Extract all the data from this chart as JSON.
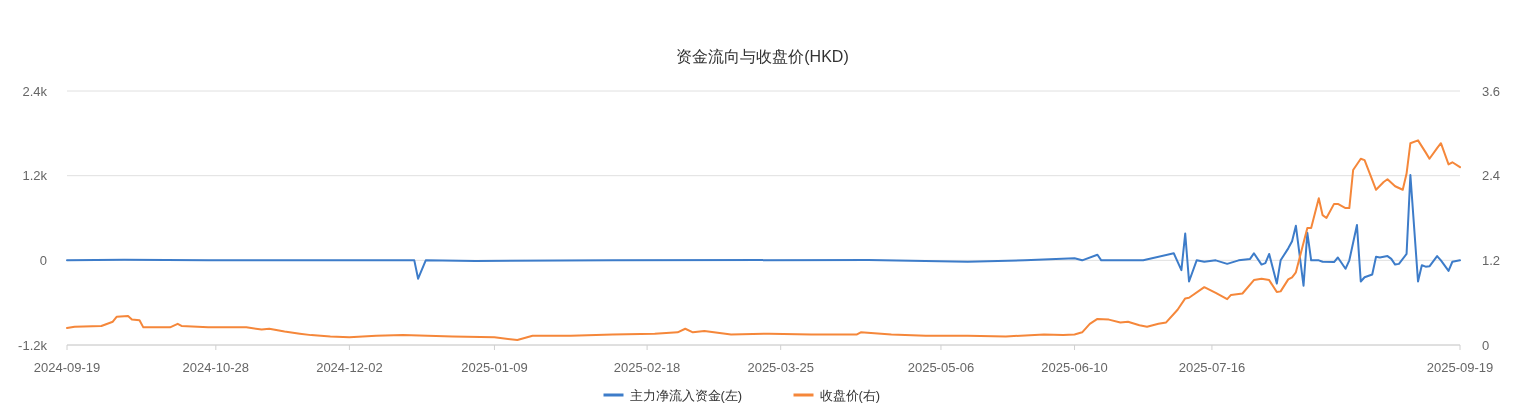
{
  "chart_data": {
    "type": "line",
    "title": "资金流向与收盘价(HKD)",
    "xlim": [
      "2024-09-19",
      "2025-09-19"
    ],
    "xticks": [
      {
        "value": "2024-09-19",
        "label": "2024-09-19"
      },
      {
        "value": "2024-10-28",
        "label": "2024-10-28"
      },
      {
        "value": "2024-12-02",
        "label": "2024-12-02"
      },
      {
        "value": "2025-01-09",
        "label": "2025-01-09"
      },
      {
        "value": "2025-02-18",
        "label": "2025-02-18"
      },
      {
        "value": "2025-03-25",
        "label": "2025-03-25"
      },
      {
        "value": "2025-05-06",
        "label": "2025-05-06"
      },
      {
        "value": "2025-06-10",
        "label": "2025-06-10"
      },
      {
        "value": "2025-07-16",
        "label": "2025-07-16"
      },
      {
        "value": "2025-09-19",
        "label": "2025-09-19"
      }
    ],
    "ylim": [
      -1200,
      2400
    ],
    "yticks": [
      {
        "value": -1200,
        "label": "-1.2k"
      },
      0,
      {
        "value": 1200,
        "label": "1.2k"
      },
      {
        "value": 2400,
        "label": "2.4k"
      }
    ],
    "y2lim": [
      0,
      3.6
    ],
    "y2ticks": [
      0,
      1.2,
      2.4,
      3.6
    ],
    "grid": "y",
    "legend": "bottom",
    "marker": "none",
    "line_style": "solid",
    "series": [
      {
        "name": "主力净流入资金(左)",
        "color": "#3d7cc9",
        "x": [
          "2024-09-19",
          "2024-10-04",
          "2024-10-26",
          "2024-12-19",
          "2024-12-20",
          "2024-12-22",
          "2025-01-04",
          "2025-02-09",
          "2025-04-17",
          "2025-05-13",
          "2025-05-28",
          "2025-06-10",
          "2025-06-12",
          "2025-06-16",
          "2025-06-17",
          "2025-06-28",
          "2025-07-06",
          "2025-07-08",
          "2025-07-09",
          "2025-07-10",
          "2025-07-12",
          "2025-07-14",
          "2025-07-17",
          "2025-07-20",
          "2025-07-23",
          "2025-07-26",
          "2025-07-27",
          "2025-07-29",
          "2025-07-30",
          "2025-07-31",
          "2025-08-02",
          "2025-08-03",
          "2025-08-05",
          "2025-08-06",
          "2025-08-07",
          "2025-08-09",
          "2025-08-10",
          "2025-08-11",
          "2025-08-13",
          "2025-08-14",
          "2025-08-17",
          "2025-08-18",
          "2025-08-20",
          "2025-08-21",
          "2025-08-23",
          "2025-08-24",
          "2025-08-25",
          "2025-08-27",
          "2025-08-28",
          "2025-08-29",
          "2025-08-31",
          "2025-09-01",
          "2025-09-02",
          "2025-09-03",
          "2025-09-05",
          "2025-09-06",
          "2025-09-08",
          "2025-09-09",
          "2025-09-10",
          "2025-09-11",
          "2025-09-13",
          "2025-09-14",
          "2025-09-16",
          "2025-09-17",
          "2025-09-19"
        ],
        "values": [
          0,
          10,
          0,
          0,
          -260,
          0,
          -10,
          0,
          5,
          -20,
          0,
          30,
          0,
          80,
          0,
          0,
          100,
          -140,
          380,
          -300,
          0,
          -20,
          0,
          -50,
          0,
          20,
          100,
          -60,
          -40,
          90,
          -330,
          0,
          170,
          270,
          490,
          -360,
          390,
          0,
          0,
          -20,
          -25,
          40,
          -120,
          0,
          500,
          -300,
          -240,
          -200,
          50,
          40,
          60,
          20,
          -60,
          -50,
          90,
          1210,
          -300,
          -70,
          -90,
          -85,
          60,
          0,
          -150,
          -20,
          0
        ]
      },
      {
        "name": "收盘价(右)",
        "color": "#f5873a",
        "axis": "y2",
        "x": [
          "2024-09-19",
          "2024-09-21",
          "2024-09-28",
          "2024-10-01",
          "2024-10-02",
          "2024-10-05",
          "2024-10-06",
          "2024-10-08",
          "2024-10-09",
          "2024-10-16",
          "2024-10-18",
          "2024-10-19",
          "2024-10-26",
          "2024-11-05",
          "2024-11-09",
          "2024-11-11",
          "2024-11-15",
          "2024-11-19",
          "2024-11-22",
          "2024-11-27",
          "2024-12-02",
          "2024-12-09",
          "2024-12-16",
          "2024-12-29",
          "2025-01-09",
          "2025-01-15",
          "2025-01-19",
          "2025-01-29",
          "2025-02-09",
          "2025-02-20",
          "2025-02-26",
          "2025-02-28",
          "2025-03-02",
          "2025-03-05",
          "2025-03-12",
          "2025-03-22",
          "2025-04-02",
          "2025-04-14",
          "2025-04-15",
          "2025-04-23",
          "2025-05-02",
          "2025-05-13",
          "2025-05-23",
          "2025-06-02",
          "2025-06-07",
          "2025-06-10",
          "2025-06-12",
          "2025-06-14",
          "2025-06-16",
          "2025-06-19",
          "2025-06-22",
          "2025-06-24",
          "2025-06-27",
          "2025-06-29",
          "2025-07-02",
          "2025-07-04",
          "2025-07-07",
          "2025-07-09",
          "2025-07-10",
          "2025-07-14",
          "2025-07-17",
          "2025-07-20",
          "2025-07-21",
          "2025-07-24",
          "2025-07-27",
          "2025-07-29",
          "2025-07-31",
          "2025-08-02",
          "2025-08-03",
          "2025-08-05",
          "2025-08-06",
          "2025-08-07",
          "2025-08-10",
          "2025-08-11",
          "2025-08-13",
          "2025-08-14",
          "2025-08-15",
          "2025-08-17",
          "2025-08-18",
          "2025-08-20",
          "2025-08-21",
          "2025-08-22",
          "2025-08-24",
          "2025-08-25",
          "2025-08-27",
          "2025-08-28",
          "2025-08-30",
          "2025-08-31",
          "2025-09-02",
          "2025-09-04",
          "2025-09-05",
          "2025-09-06",
          "2025-09-08",
          "2025-09-10",
          "2025-09-11",
          "2025-09-13",
          "2025-09-14",
          "2025-09-16",
          "2025-09-17",
          "2025-09-19"
        ],
        "values": [
          0.24,
          0.26,
          0.27,
          0.33,
          0.4,
          0.41,
          0.36,
          0.35,
          0.25,
          0.25,
          0.3,
          0.27,
          0.25,
          0.25,
          0.22,
          0.23,
          0.19,
          0.16,
          0.14,
          0.12,
          0.11,
          0.13,
          0.14,
          0.12,
          0.11,
          0.07,
          0.13,
          0.13,
          0.15,
          0.16,
          0.18,
          0.23,
          0.18,
          0.2,
          0.15,
          0.16,
          0.15,
          0.15,
          0.18,
          0.15,
          0.13,
          0.13,
          0.12,
          0.15,
          0.14,
          0.15,
          0.18,
          0.3,
          0.37,
          0.36,
          0.32,
          0.33,
          0.28,
          0.26,
          0.3,
          0.32,
          0.5,
          0.66,
          0.67,
          0.82,
          0.74,
          0.65,
          0.71,
          0.73,
          0.92,
          0.94,
          0.92,
          0.75,
          0.76,
          0.93,
          0.96,
          1.03,
          1.66,
          1.66,
          2.08,
          1.84,
          1.8,
          2.0,
          2.0,
          1.94,
          1.94,
          2.48,
          2.64,
          2.62,
          2.34,
          2.2,
          2.31,
          2.35,
          2.25,
          2.2,
          2.43,
          2.86,
          2.9,
          2.73,
          2.64,
          2.79,
          2.86,
          2.56,
          2.59,
          2.52
        ]
      }
    ]
  }
}
